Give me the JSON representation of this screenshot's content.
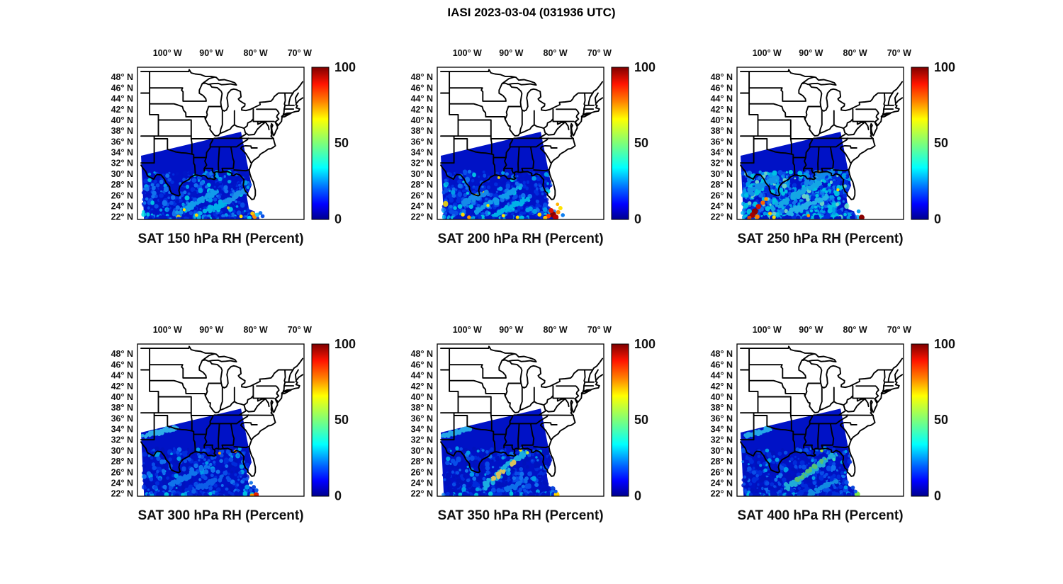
{
  "figure": {
    "title": "IASI 2023-03-04 (031936 UTC)"
  },
  "chart_data": {
    "type": "heatmap",
    "figure_title": "IASI 2023-03-04 (031936 UTC)",
    "instrument": "IASI",
    "date": "2023-03-04",
    "time_utc": "031936",
    "variable": "RH",
    "units": "Percent",
    "colormap": "jet",
    "legend_position": "right-colorbar-per-panel",
    "grid": false,
    "colorbar": {
      "min": 0,
      "max": 100,
      "tick_labels": [
        "100",
        "50",
        "0"
      ],
      "gradient_stops": [
        [
          "0%",
          "#7f0000"
        ],
        [
          "11%",
          "#ff1400"
        ],
        [
          "22%",
          "#ff7d00"
        ],
        [
          "34%",
          "#ffff00"
        ],
        [
          "50%",
          "#7dff7a"
        ],
        [
          "66%",
          "#00ffff"
        ],
        [
          "80%",
          "#0063ff"
        ],
        [
          "90%",
          "#0000ff"
        ],
        [
          "100%",
          "#00008f"
        ]
      ]
    },
    "map_extent": {
      "lon_min": -106.8,
      "lon_max": -69.0,
      "lat_min": 21.5,
      "lat_max": 49.8
    },
    "x_ticks": [
      {
        "label": "100° W",
        "lon": -100
      },
      {
        "label": "90° W",
        "lon": -90
      },
      {
        "label": "80° W",
        "lon": -80
      },
      {
        "label": "70° W",
        "lon": -70
      }
    ],
    "y_ticks": [
      {
        "label": "48° N",
        "lat": 48
      },
      {
        "label": "46° N",
        "lat": 46
      },
      {
        "label": "44° N",
        "lat": 44
      },
      {
        "label": "42° N",
        "lat": 42
      },
      {
        "label": "40° N",
        "lat": 40
      },
      {
        "label": "38° N",
        "lat": 38
      },
      {
        "label": "36° N",
        "lat": 36
      },
      {
        "label": "34° N",
        "lat": 34
      },
      {
        "label": "32° N",
        "lat": 32
      },
      {
        "label": "30° N",
        "lat": 30
      },
      {
        "label": "28° N",
        "lat": 28
      },
      {
        "label": "26° N",
        "lat": 26
      },
      {
        "label": "24° N",
        "lat": 24
      },
      {
        "label": "22° N",
        "lat": 22
      }
    ],
    "colors": {
      "swath_base": "#0012c6",
      "border": "#000000",
      "text": "#111111",
      "palettes": {
        "std": [
          [
            "#0016c8",
            0.4
          ],
          [
            "#0032e2",
            0.25
          ],
          [
            "#0a58ee",
            0.13
          ],
          [
            "#1583f5",
            0.1
          ],
          [
            "#00b4f0",
            0.07
          ],
          [
            "#00e0e8",
            0.04
          ],
          [
            "#ffe600",
            0.01
          ]
        ],
        "wet": [
          [
            "#0032e2",
            0.2
          ],
          [
            "#0a58ee",
            0.2
          ],
          [
            "#1583f5",
            0.2
          ],
          [
            "#00b4f0",
            0.22
          ],
          [
            "#00e0e8",
            0.14
          ],
          [
            "#7cf0c8",
            0.04
          ]
        ],
        "dry": [
          [
            "#0013bc",
            0.5
          ],
          [
            "#0030de",
            0.26
          ],
          [
            "#0a58ee",
            0.12
          ],
          [
            "#1583f5",
            0.07
          ],
          [
            "#00b4f0",
            0.05
          ]
        ],
        "fringe": [
          [
            "#0018c8",
            0.5
          ],
          [
            "#0034e0",
            0.28
          ],
          [
            "#00b4f0",
            0.13
          ],
          [
            "#00e0e8",
            0.09
          ]
        ]
      }
    },
    "swath_polygon": [
      [
        -106.0,
        33.35
      ],
      [
        -83.3,
        37.8
      ],
      [
        -80.9,
        27.8
      ],
      [
        -82.0,
        25.8
      ],
      [
        -81.5,
        23.4
      ],
      [
        -80.2,
        23.0
      ],
      [
        -79.9,
        21.5
      ],
      [
        -105.3,
        21.5
      ]
    ],
    "panels": [
      {
        "title": "SAT 150 hPa RH (Percent)",
        "level_hPa": 150,
        "seed": 101,
        "mottle_count": 620,
        "palette": "std",
        "streaks": [
          {
            "f": [
              -97.5,
              22.8
            ],
            "t": [
              -88.5,
              26.8
            ],
            "c": "#14b4f2",
            "n": 55
          },
          {
            "f": [
              -93.5,
              22.2
            ],
            "t": [
              -85.5,
              25.2
            ],
            "c": "#00cdee",
            "n": 40
          },
          {
            "f": [
              -87.0,
              24.5
            ],
            "t": [
              -82.5,
              27.0
            ],
            "c": "#20a8f0",
            "n": 30
          }
        ],
        "hotspots": [
          [
            -80.7,
            22.6,
            3.0,
            "#ffc400"
          ],
          [
            -80.2,
            22.05,
            3.4,
            "#ff8c00"
          ],
          [
            -79.6,
            22.35,
            3.0,
            "#28c8ff"
          ],
          [
            -81.4,
            21.8,
            3.0,
            "#00d2ff"
          ],
          [
            -83.3,
            22.05,
            2.5,
            "#ffe000"
          ],
          [
            -93.4,
            22.3,
            2.4,
            "#ffd800"
          ],
          [
            -96.2,
            23.3,
            2.2,
            "#ffe400"
          ],
          [
            -78.9,
            22.7,
            2.8,
            "#1578f0"
          ],
          [
            -78.4,
            22.1,
            2.8,
            "#0a50e8"
          ]
        ]
      },
      {
        "title": "SAT 200 hPa RH (Percent)",
        "level_hPa": 200,
        "seed": 202,
        "mottle_count": 680,
        "palette": "std",
        "streaks": [
          {
            "f": [
              -98.0,
              23.0
            ],
            "t": [
              -88.0,
              27.5
            ],
            "c": "#14b4f2",
            "n": 55
          },
          {
            "f": [
              -94.0,
              22.3
            ],
            "t": [
              -86.0,
              25.5
            ],
            "c": "#00cdee",
            "n": 45
          },
          {
            "f": [
              -101.0,
              24.5
            ],
            "t": [
              -96.0,
              26.5
            ],
            "c": "#18a0f0",
            "n": 30
          }
        ],
        "hotspots": [
          [
            -80.5,
            22.4,
            4.4,
            "#8b0000"
          ],
          [
            -79.9,
            21.9,
            4.0,
            "#b80000"
          ],
          [
            -80.95,
            23.15,
            3.5,
            "#e01400"
          ],
          [
            -81.6,
            22.1,
            3.4,
            "#ff3800"
          ],
          [
            -79.35,
            22.85,
            3.0,
            "#ff8c00"
          ],
          [
            -82.3,
            21.8,
            3.0,
            "#ffc400"
          ],
          [
            -83.6,
            22.4,
            2.8,
            "#ffdc00"
          ],
          [
            -78.85,
            23.6,
            3.0,
            "#ffe300"
          ],
          [
            -79.5,
            24.3,
            2.4,
            "#ffb400"
          ],
          [
            -101.0,
            22.4,
            2.7,
            "#ffd800"
          ],
          [
            -99.6,
            21.9,
            2.7,
            "#ff9800"
          ],
          [
            -91.8,
            22.2,
            2.4,
            "#ffe000"
          ],
          [
            -88.6,
            21.9,
            2.4,
            "#ffd400"
          ],
          [
            -95.3,
            24.1,
            2.2,
            "#ffe600"
          ],
          [
            -78.3,
            22.3,
            2.8,
            "#1080f0"
          ]
        ]
      },
      {
        "title": "SAT 250 hPa RH (Percent)",
        "level_hPa": 250,
        "seed": 303,
        "mottle_count": 880,
        "palette": "wet",
        "streaks": [
          {
            "f": [
              -99.0,
              23.5
            ],
            "t": [
              -88.0,
              28.5
            ],
            "c": "#18c0ea",
            "n": 70
          },
          {
            "f": [
              -95.0,
              22.5
            ],
            "t": [
              -86.0,
              26.0
            ],
            "c": "#28ccee",
            "n": 50
          },
          {
            "f": [
              -104.0,
              26.5
            ],
            "t": [
              -97.0,
              29.5
            ],
            "c": "#16aaee",
            "n": 45
          },
          {
            "f": [
              -92.0,
              28.0
            ],
            "t": [
              -85.0,
              30.5
            ],
            "c": "#149ef0",
            "n": 35
          }
        ],
        "hotspots": [
          [
            -102.75,
            23.0,
            4.4,
            "#8b0000"
          ],
          [
            -103.3,
            22.3,
            4.0,
            "#a00000"
          ],
          [
            -101.95,
            23.9,
            3.7,
            "#d01000"
          ],
          [
            -100.95,
            24.6,
            3.2,
            "#ff6000"
          ],
          [
            -100.2,
            25.3,
            2.8,
            "#ff9800"
          ],
          [
            -102.2,
            22.0,
            3.3,
            "#ff8000"
          ],
          [
            -104.0,
            21.8,
            3.0,
            "#dc3c00"
          ],
          [
            -99.3,
            22.6,
            2.6,
            "#ffc400"
          ],
          [
            -98.4,
            21.9,
            2.6,
            "#ffdc00"
          ],
          [
            -78.5,
            21.85,
            4.0,
            "#8b0000"
          ],
          [
            -88.3,
            30.35,
            2.3,
            "#ff9400"
          ],
          [
            -83.9,
            27.0,
            2.2,
            "#ffd800"
          ],
          [
            -90.6,
            22.2,
            2.4,
            "#ff8c00"
          ],
          [
            -79.2,
            23.0,
            2.8,
            "#10a0f0"
          ]
        ]
      },
      {
        "title": "SAT 300 hPa RH (Percent)",
        "level_hPa": 300,
        "seed": 404,
        "mottle_count": 520,
        "palette": "dry",
        "streaks": [
          {
            "f": [
              -105.3,
              32.7
            ],
            "t": [
              -97.8,
              34.25
            ],
            "c": "#38c8f0",
            "n": 60,
            "w": [
              0.9,
              0.5
            ]
          },
          {
            "f": [
              -99.5,
              23.5
            ],
            "t": [
              -90.5,
              27.5
            ],
            "c": "#1286f2",
            "n": 45
          },
          {
            "f": [
              -95.0,
              22.2
            ],
            "t": [
              -88.0,
              25.0
            ],
            "c": "#0f6cee",
            "n": 35
          }
        ],
        "hotspots": [
          [
            -79.9,
            21.7,
            4.0,
            "#e02000"
          ],
          [
            -80.8,
            21.6,
            3.0,
            "#ff9800"
          ],
          [
            -84.6,
            29.85,
            2.2,
            "#ff8000"
          ],
          [
            -88.15,
            29.5,
            2.0,
            "#ff9c00"
          ],
          [
            -81.0,
            24.0,
            2.6,
            "#1e78e8"
          ],
          [
            -80.4,
            23.2,
            3.0,
            "#0a46dc"
          ],
          [
            -79.8,
            22.6,
            2.8,
            "#0d5ce8"
          ]
        ]
      },
      {
        "title": "SAT 350 hPa RH (Percent)",
        "level_hPa": 350,
        "seed": 505,
        "mottle_count": 540,
        "palette": "dry",
        "streaks": [
          {
            "f": [
              -105.3,
              32.7
            ],
            "t": [
              -99.3,
              34.1
            ],
            "c": "#2cc2ee",
            "n": 42,
            "w": [
              0.9,
              0.5
            ]
          },
          {
            "f": [
              -96.5,
              23.2
            ],
            "t": [
              -86.8,
              29.7
            ],
            "c": "#1fc8e8",
            "n": 75,
            "w": [
              1.3,
              0.8
            ]
          },
          {
            "f": [
              -94.3,
              24.6
            ],
            "t": [
              -89.6,
              27.7
            ],
            "c": "#ffe14a",
            "n": 16,
            "w": [
              0.7,
              0.45
            ]
          },
          {
            "f": [
              -92.0,
              22.3
            ],
            "t": [
              -86.0,
              24.8
            ],
            "c": "#1080f0",
            "n": 30
          }
        ],
        "hotspots": [
          [
            -79.7,
            21.8,
            4.0,
            "#ffd700"
          ],
          [
            -87.9,
            30.1,
            2.3,
            "#ffe000"
          ],
          [
            -86.3,
            29.6,
            2.2,
            "#c8e830"
          ],
          [
            -80.6,
            23.0,
            2.8,
            "#0a46dc"
          ],
          [
            -79.9,
            22.4,
            2.6,
            "#0d5ce8"
          ]
        ]
      },
      {
        "title": "SAT 400 hPa RH (Percent)",
        "level_hPa": 400,
        "seed": 606,
        "mottle_count": 580,
        "palette": "dry",
        "streaks": [
          {
            "f": [
              -105.3,
              32.6
            ],
            "t": [
              -99.0,
              34.1
            ],
            "c": "#2cc2ee",
            "n": 45,
            "w": [
              0.9,
              0.5
            ]
          },
          {
            "f": [
              -96.0,
              22.8
            ],
            "t": [
              -84.5,
              29.3
            ],
            "c": "#26c8da",
            "n": 85,
            "w": [
              1.3,
              0.8
            ]
          },
          {
            "f": [
              -93.5,
              24.2
            ],
            "t": [
              -86.5,
              28.6
            ],
            "c": "#63de6a",
            "n": 20,
            "w": [
              0.7,
              0.45
            ]
          },
          {
            "f": [
              -90.0,
              22.0
            ],
            "t": [
              -84.0,
              24.5
            ],
            "c": "#15a0e8",
            "n": 30
          }
        ],
        "hotspots": [
          [
            -79.5,
            21.85,
            4.0,
            "#7ce84a"
          ],
          [
            -87.6,
            29.95,
            2.2,
            "#a0e040"
          ],
          [
            -84.8,
            28.3,
            2.3,
            "#30d8c0"
          ],
          [
            -80.5,
            23.1,
            2.8,
            "#0a46dc"
          ],
          [
            -79.9,
            22.4,
            2.6,
            "#0d5ce8"
          ]
        ]
      }
    ]
  }
}
